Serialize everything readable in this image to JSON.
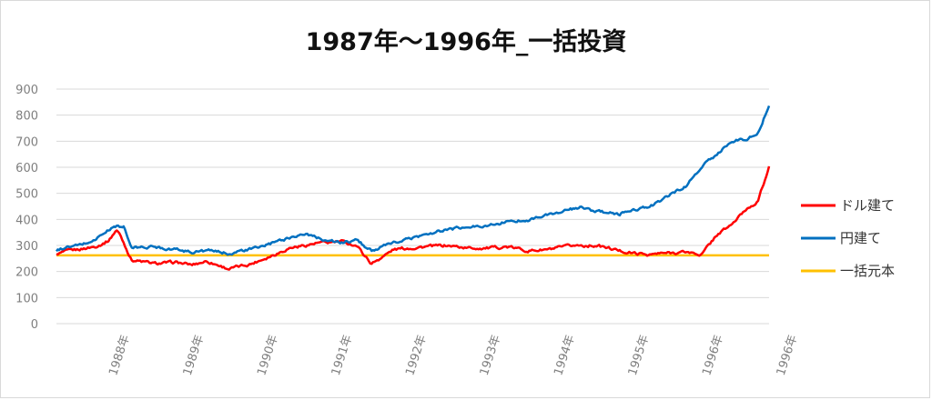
{
  "chart_data": {
    "type": "line",
    "title": "1987年～1996年_一括投資",
    "ylim": [
      0,
      900
    ],
    "y_ticks": [
      0,
      100,
      200,
      300,
      400,
      500,
      600,
      700,
      800,
      900
    ],
    "x_tick_labels": [
      "1988年",
      "1989年",
      "1990年",
      "1991年",
      "1992年",
      "1993年",
      "1994年",
      "1995年",
      "1996年",
      "1996年"
    ],
    "grid": true,
    "legend_position": "right",
    "series": [
      {
        "name": "ドル建て",
        "color": "#ff0000",
        "x": [
          0,
          0.1,
          0.3,
          0.5,
          0.6,
          0.7,
          0.8,
          0.85,
          1.0,
          1.3,
          1.6,
          1.8,
          2.0,
          2.3,
          2.6,
          2.9,
          3.1,
          3.3,
          3.5,
          3.6,
          3.8,
          4.0,
          4.2,
          4.5,
          4.9,
          5.2,
          5.5,
          5.8,
          6.0,
          6.3,
          6.6,
          6.9,
          7.2,
          7.5,
          7.7,
          7.9,
          8.1,
          8.4,
          8.6,
          8.8,
          9.0,
          9.2,
          9.35,
          9.5
        ],
        "values": [
          265,
          275,
          285,
          295,
          305,
          320,
          360,
          340,
          245,
          230,
          235,
          225,
          240,
          210,
          230,
          265,
          290,
          300,
          310,
          310,
          315,
          300,
          230,
          285,
          295,
          300,
          290,
          290,
          295,
          280,
          285,
          300,
          300,
          280,
          270,
          265,
          270,
          275,
          265,
          340,
          380,
          440,
          470,
          600
        ]
      },
      {
        "name": "円建て",
        "color": "#0070c0",
        "x": [
          0,
          0.1,
          0.3,
          0.5,
          0.6,
          0.7,
          0.8,
          0.9,
          1.0,
          1.3,
          1.6,
          1.8,
          2.0,
          2.3,
          2.6,
          2.9,
          3.1,
          3.3,
          3.6,
          3.8,
          4.0,
          4.2,
          4.5,
          4.9,
          5.2,
          5.5,
          5.8,
          6.0,
          6.3,
          6.6,
          6.9,
          7.0,
          7.2,
          7.5,
          7.7,
          7.9,
          8.1,
          8.4,
          8.6,
          8.8,
          9.0,
          9.2,
          9.35,
          9.5
        ],
        "values": [
          280,
          290,
          300,
          320,
          340,
          360,
          375,
          370,
          290,
          295,
          285,
          275,
          280,
          270,
          285,
          310,
          330,
          345,
          320,
          310,
          320,
          280,
          310,
          340,
          360,
          370,
          380,
          390,
          400,
          420,
          440,
          445,
          430,
          420,
          440,
          445,
          480,
          530,
          600,
          650,
          700,
          710,
          730,
          840
        ]
      },
      {
        "name": "一括元本",
        "color": "#ffc000",
        "x": [
          0,
          9.5
        ],
        "values": [
          262,
          262
        ]
      }
    ]
  }
}
